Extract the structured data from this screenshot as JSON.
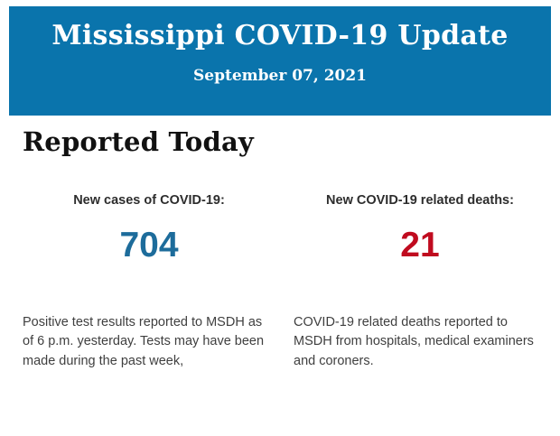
{
  "banner": {
    "title": "Mississippi COVID-19 Update",
    "date": "September 07, 2021",
    "background_color": "#0a74ac",
    "text_color": "#ffffff"
  },
  "section": {
    "heading": "Reported Today"
  },
  "stats": {
    "cases": {
      "label": "New cases of COVID-19:",
      "value": "704",
      "value_color": "#1d6c9b",
      "description": "Positive test results reported to MSDH as of 6 p.m. yesterday. Tests may have been made during the past week,"
    },
    "deaths": {
      "label": "New COVID-19 related deaths:",
      "value": "21",
      "value_color": "#c00b1f",
      "description": "COVID-19 related deaths reported to MSDH from hospitals, medical examiners and coroners."
    }
  }
}
